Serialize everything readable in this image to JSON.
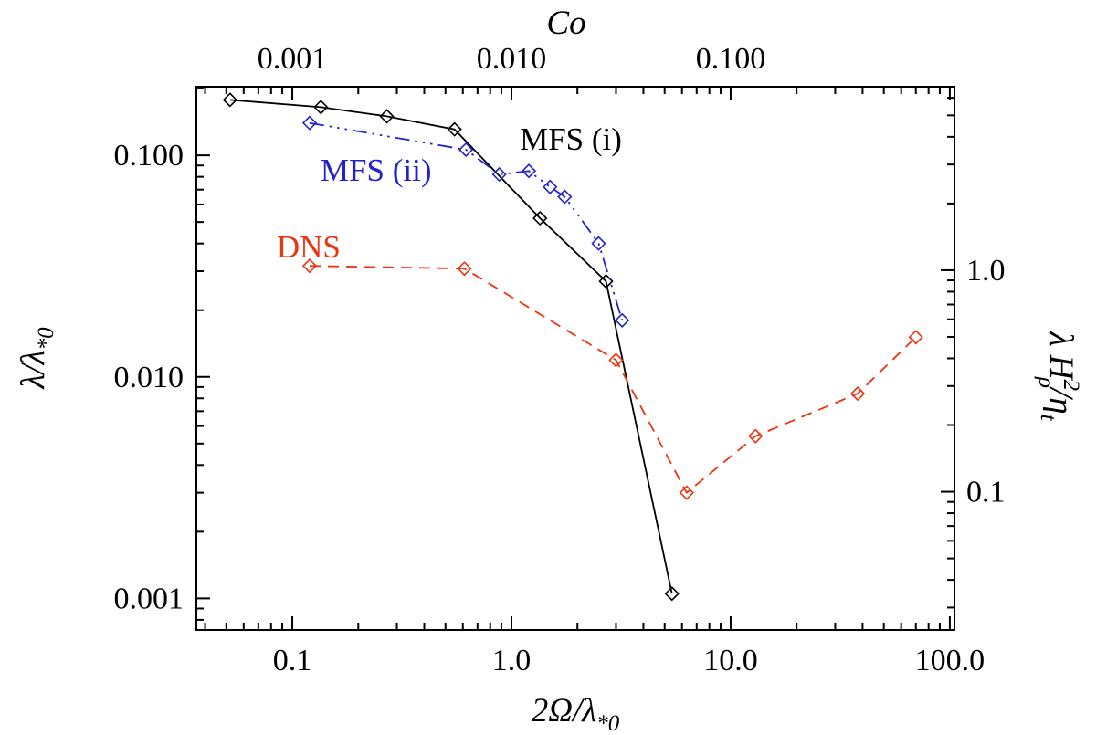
{
  "figure": {
    "background": "#ffffff",
    "accent_black": "#000000",
    "accent_blue": "#2222cc",
    "accent_red": "#ee3311"
  },
  "chart_data": {
    "type": "line",
    "title": "",
    "grid": false,
    "legend_position": "inline-annotations",
    "x_axis": {
      "scale": "log",
      "range": [
        0.0365,
        105
      ],
      "title_parts": [
        [
          "2Ω/λ",
          "n"
        ],
        [
          "*0",
          "sub"
        ]
      ],
      "title_plain": "2Ω/λ*0",
      "ticks": [
        {
          "v": 0.1,
          "label": "0.1"
        },
        {
          "v": 1,
          "label": "1.0"
        },
        {
          "v": 10,
          "label": "10.0"
        },
        {
          "v": 100,
          "label": "100.0"
        }
      ]
    },
    "y_axis": {
      "scale": "log",
      "range": [
        0.00072,
        0.204
      ],
      "title_parts": [
        [
          "λ/λ",
          "n"
        ],
        [
          "*0",
          "sub"
        ]
      ],
      "title_plain": "λ/λ*0",
      "ticks": [
        {
          "v": 0.1,
          "label": "0.100"
        },
        {
          "v": 0.01,
          "label": "0.010"
        },
        {
          "v": 0.001,
          "label": "0.001"
        }
      ]
    },
    "top_axis": {
      "title": "Co",
      "factor": 0.01,
      "ticks": [
        {
          "v": 0.001,
          "label": "0.001"
        },
        {
          "v": 0.01,
          "label": "0.010"
        },
        {
          "v": 0.1,
          "label": "0.100"
        }
      ]
    },
    "right_axis": {
      "factor": 33,
      "title_parts": [
        [
          "λ H",
          "n"
        ],
        [
          "2",
          "sup"
        ],
        [
          "ρ",
          "subdown"
        ],
        [
          "/η",
          "n"
        ],
        [
          "t",
          "sub"
        ]
      ],
      "title_plain": "λ H²ρ/ηt",
      "ticks": [
        {
          "v": 1.0,
          "label": "1.0"
        },
        {
          "v": 0.1,
          "label": "0.1"
        }
      ]
    },
    "series": [
      {
        "id": "mfs-i",
        "name": "MFS (i)",
        "color": "#000000",
        "line_style": "solid",
        "marker": "open-diamond",
        "x": [
          0.052,
          0.135,
          0.27,
          0.55,
          1.35,
          2.7,
          5.4
        ],
        "y": [
          0.178,
          0.165,
          0.15,
          0.131,
          0.052,
          0.027,
          0.00105
        ]
      },
      {
        "id": "mfs-ii",
        "name": "MFS (ii)",
        "color": "#2222cc",
        "line_style": "dash-dot-dot-dot",
        "marker": "open-diamond",
        "x": [
          0.12,
          0.62,
          0.88,
          1.2,
          1.5,
          1.75,
          2.5,
          3.2
        ],
        "y": [
          0.14,
          0.106,
          0.082,
          0.085,
          0.072,
          0.065,
          0.04,
          0.018
        ]
      },
      {
        "id": "dns",
        "name": "DNS",
        "color": "#ee3311",
        "line_style": "dashed",
        "marker": "open-diamond",
        "x": [
          0.12,
          0.61,
          3.0,
          6.3,
          13,
          38,
          70
        ],
        "y": [
          0.0317,
          0.0308,
          0.0119,
          0.003,
          0.0054,
          0.0084,
          0.0151
        ]
      }
    ],
    "annotations": [
      {
        "id": "mfs-i",
        "text": "MFS (i)",
        "color": "#000000",
        "fx": 0.494,
        "fy": 0.116
      },
      {
        "id": "mfs-ii",
        "text": "MFS (ii)",
        "color": "#2222cc",
        "fx": 0.237,
        "fy": 0.173
      },
      {
        "id": "dns",
        "text": "DNS",
        "color": "#ee3311",
        "fx": 0.148,
        "fy": 0.314
      }
    ]
  }
}
